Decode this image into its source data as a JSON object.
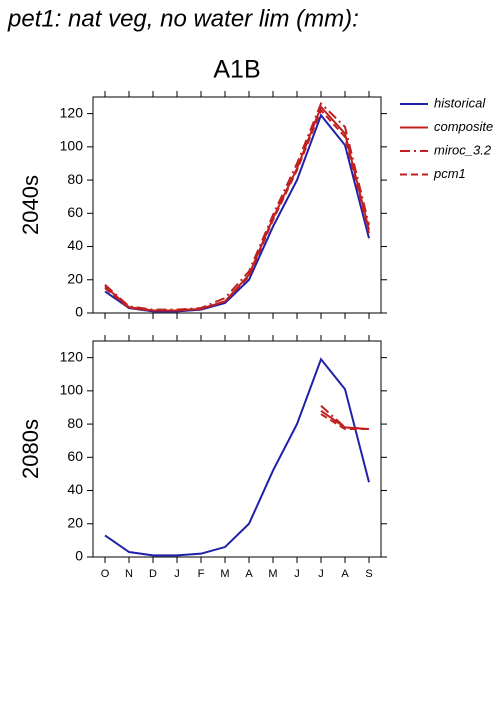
{
  "title": "pet1: nat veg, no water lim (mm):",
  "subtitle": "A1B",
  "chart_data": [
    {
      "type": "line",
      "ylabel": "2040s",
      "ylim": [
        0,
        130
      ],
      "yticks": [
        0,
        20,
        40,
        60,
        80,
        100,
        120
      ],
      "series": [
        {
          "name": "historical",
          "color": "#2020aa",
          "dash": "solid",
          "values": [
            13,
            3,
            1,
            1,
            2,
            6,
            20,
            52,
            80,
            119,
            101,
            45
          ]
        },
        {
          "name": "composite",
          "color": "#c02020",
          "dash": "solid",
          "values": [
            16,
            3.5,
            1.5,
            1.5,
            2.5,
            7,
            23,
            57,
            87,
            124,
            108,
            50
          ]
        },
        {
          "name": "miroc_3.2",
          "color": "#c02020",
          "dash": "dashdot",
          "values": [
            17,
            4,
            2,
            2,
            3,
            9,
            25,
            59,
            90,
            126,
            112,
            53
          ]
        },
        {
          "name": "pcm1",
          "color": "#c02020",
          "dash": "dashed",
          "values": [
            15,
            3,
            1.5,
            1.5,
            2.5,
            7,
            22,
            56,
            86,
            122,
            106,
            48
          ]
        }
      ]
    },
    {
      "type": "line",
      "ylabel": "2080s",
      "ylim": [
        0,
        130
      ],
      "yticks": [
        0,
        20,
        40,
        60,
        80,
        100,
        120
      ],
      "categories": [
        "O",
        "N",
        "D",
        "J",
        "F",
        "M",
        "A",
        "M",
        "J",
        "J",
        "A",
        "S"
      ],
      "series": [
        {
          "color": "#2020aa",
          "dash": "solid",
          "values": [
            13,
            3,
            1,
            1,
            2,
            6,
            20,
            52,
            80,
            119,
            101,
            45
          ]
        },
        {
          "color": "#c02020",
          "dash": "solid",
          "values": [
            null,
            null,
            null,
            null,
            null,
            null,
            null,
            null,
            null,
            88,
            78,
            77
          ]
        },
        {
          "color": "#c02020",
          "dash": "dashdot",
          "values": [
            null,
            null,
            null,
            null,
            null,
            null,
            null,
            null,
            null,
            91,
            78,
            77
          ]
        },
        {
          "color": "#c02020",
          "dash": "dashed",
          "values": [
            null,
            null,
            null,
            null,
            null,
            null,
            null,
            null,
            null,
            86,
            77,
            77
          ]
        }
      ]
    }
  ]
}
